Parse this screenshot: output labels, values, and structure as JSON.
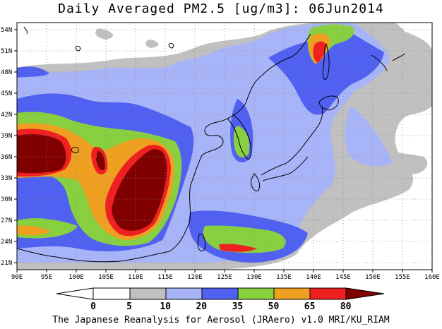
{
  "map": {
    "title": "Daily Averaged PM2.5 [ug/m3]: 06Jun2014",
    "footer": "The Japanese Reanalysis for Aerosol (JRAero) v1.0 MRI/KU_RIAM",
    "lon_ticks": [
      "90E",
      "95E",
      "100E",
      "105E",
      "110E",
      "115E",
      "120E",
      "125E",
      "130E",
      "135E",
      "140E",
      "145E",
      "150E",
      "155E",
      "160E"
    ],
    "lat_ticks": [
      "54N",
      "51N",
      "48N",
      "45N",
      "42N",
      "39N",
      "36N",
      "33N",
      "30N",
      "27N",
      "24N",
      "21N"
    ],
    "lon_range": [
      90,
      160
    ],
    "lat_range": [
      20,
      55
    ],
    "grid": "dotted"
  },
  "colorbar": {
    "levels": [
      "0",
      "5",
      "10",
      "20",
      "35",
      "50",
      "65",
      "80"
    ],
    "colors": [
      "#ffffff",
      "#ffffff",
      "#c0c0c0",
      "#a8b4f8",
      "#5060f0",
      "#88d040",
      "#f0a020",
      "#f02020",
      "#800000"
    ]
  }
}
